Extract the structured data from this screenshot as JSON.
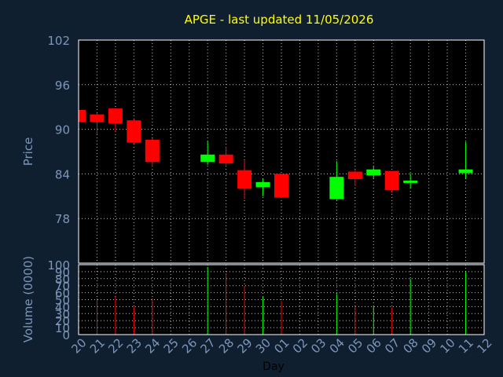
{
  "colors": {
    "background": "#0f1f30",
    "plot_background": "#000000",
    "title": "#ffff00",
    "axis_text": "#7d96b9",
    "grid": "#ffffff",
    "up": "#00ff00",
    "down": "#ff0000"
  },
  "chart_data": [
    {
      "type": "candlestick",
      "title": "APGE - last updated 11/05/2026",
      "ylabel": "Price",
      "ylim": [
        72,
        102
      ],
      "yticks": [
        78,
        84,
        90,
        96,
        102
      ],
      "grid": true,
      "x_ticks": [
        "20",
        "21",
        "22",
        "23",
        "24",
        "25",
        "26",
        "27",
        "28",
        "29",
        "30",
        "01",
        "02",
        "03",
        "04",
        "05",
        "06",
        "07",
        "08",
        "09",
        "10",
        "11",
        "12"
      ],
      "candles": [
        {
          "x": "20",
          "open": 92.6,
          "close": 91.0,
          "high": 92.9,
          "low": 90.8
        },
        {
          "x": "21",
          "open": 92.0,
          "close": 91.0,
          "high": 92.2,
          "low": 89.3
        },
        {
          "x": "22",
          "open": 92.8,
          "close": 90.8,
          "high": 92.9,
          "low": 89.7
        },
        {
          "x": "23",
          "open": 91.2,
          "close": 88.2,
          "high": 91.4,
          "low": 88.0
        },
        {
          "x": "24",
          "open": 88.6,
          "close": 85.6,
          "high": 88.8,
          "low": 85.0
        },
        {
          "x": "27",
          "open": 85.6,
          "close": 86.6,
          "high": 88.4,
          "low": 85.2
        },
        {
          "x": "28",
          "open": 86.6,
          "close": 85.4,
          "high": 87.6,
          "low": 85.2
        },
        {
          "x": "29",
          "open": 84.5,
          "close": 82.0,
          "high": 85.8,
          "low": 80.6
        },
        {
          "x": "30",
          "open": 82.2,
          "close": 82.9,
          "high": 83.3,
          "low": 81.0
        },
        {
          "x": "01",
          "open": 84.0,
          "close": 80.8,
          "high": 84.0,
          "low": 80.8
        },
        {
          "x": "04",
          "open": 80.6,
          "close": 83.6,
          "high": 85.7,
          "low": 80.5
        },
        {
          "x": "05",
          "open": 84.3,
          "close": 83.3,
          "high": 84.6,
          "low": 82.4
        },
        {
          "x": "06",
          "open": 83.8,
          "close": 84.6,
          "high": 85.0,
          "low": 83.4
        },
        {
          "x": "07",
          "open": 84.4,
          "close": 81.8,
          "high": 84.4,
          "low": 81.5
        },
        {
          "x": "08",
          "open": 82.8,
          "close": 83.1,
          "high": 84.1,
          "low": 82.0
        },
        {
          "x": "11",
          "open": 84.1,
          "close": 84.6,
          "high": 88.3,
          "low": 83.4
        }
      ]
    },
    {
      "type": "bar",
      "ylabel": "Volume (0000)",
      "xlabel": "Day",
      "ylim": [
        0,
        100
      ],
      "yticks": [
        0,
        10,
        20,
        30,
        40,
        50,
        60,
        70,
        80,
        90,
        100
      ],
      "grid": true,
      "x_ticks": [
        "20",
        "21",
        "22",
        "23",
        "24",
        "25",
        "26",
        "27",
        "28",
        "29",
        "30",
        "01",
        "02",
        "03",
        "04",
        "05",
        "06",
        "07",
        "08",
        "09",
        "10",
        "11",
        "12"
      ],
      "bars": [
        {
          "x": "21",
          "value": 52,
          "direction": "down"
        },
        {
          "x": "22",
          "value": 54,
          "direction": "down"
        },
        {
          "x": "23",
          "value": 40,
          "direction": "down"
        },
        {
          "x": "24",
          "value": 52,
          "direction": "down"
        },
        {
          "x": "27",
          "value": 97,
          "direction": "up"
        },
        {
          "x": "28",
          "value": 88,
          "direction": "down"
        },
        {
          "x": "29",
          "value": 70,
          "direction": "down"
        },
        {
          "x": "30",
          "value": 55,
          "direction": "up"
        },
        {
          "x": "01",
          "value": 48,
          "direction": "down"
        },
        {
          "x": "04",
          "value": 58,
          "direction": "up"
        },
        {
          "x": "05",
          "value": 40,
          "direction": "down"
        },
        {
          "x": "06",
          "value": 41,
          "direction": "up"
        },
        {
          "x": "07",
          "value": 39,
          "direction": "down"
        },
        {
          "x": "08",
          "value": 80,
          "direction": "up"
        },
        {
          "x": "11",
          "value": 90,
          "direction": "up"
        }
      ]
    }
  ]
}
